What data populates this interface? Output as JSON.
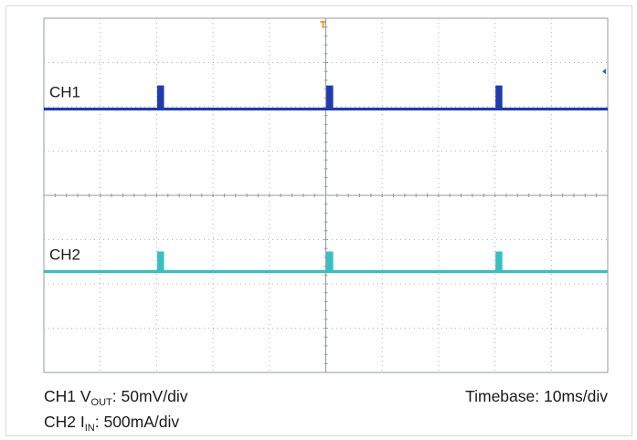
{
  "chart_data": {
    "type": "line",
    "title": "",
    "grid": true,
    "x_divisions": 10,
    "y_divisions": 8,
    "time_per_div_ms": 10,
    "pulse_times_ms": [
      20.7,
      50.7,
      80.7
    ],
    "series": [
      {
        "name": "CH1",
        "color": "#1530a8",
        "scale_label": "50mV/div",
        "baseline_div": 2.05,
        "pulse_height_div": 0.5,
        "pulse_width_ms": 0.7
      },
      {
        "name": "CH2",
        "color": "#2bbdc0",
        "scale_label": "500mA/div",
        "baseline_div": 5.72,
        "pulse_height_div": 0.42,
        "pulse_width_ms": 0.7
      }
    ]
  },
  "captions": {
    "ch1_prefix": "CH1 V",
    "ch1_sub": "OUT",
    "ch1_suffix": ": 50mV/div",
    "ch2_prefix": "CH2 I",
    "ch2_sub": "IN",
    "ch2_suffix": ": 500mA/div",
    "timebase": "Timebase: 10ms/div"
  },
  "colors": {
    "grid_border": "#8f9ba6",
    "grid_dots": "#a9b3bc",
    "trigger_marker": "#f59a1e",
    "ch1_marker": "#2a5bd7"
  }
}
